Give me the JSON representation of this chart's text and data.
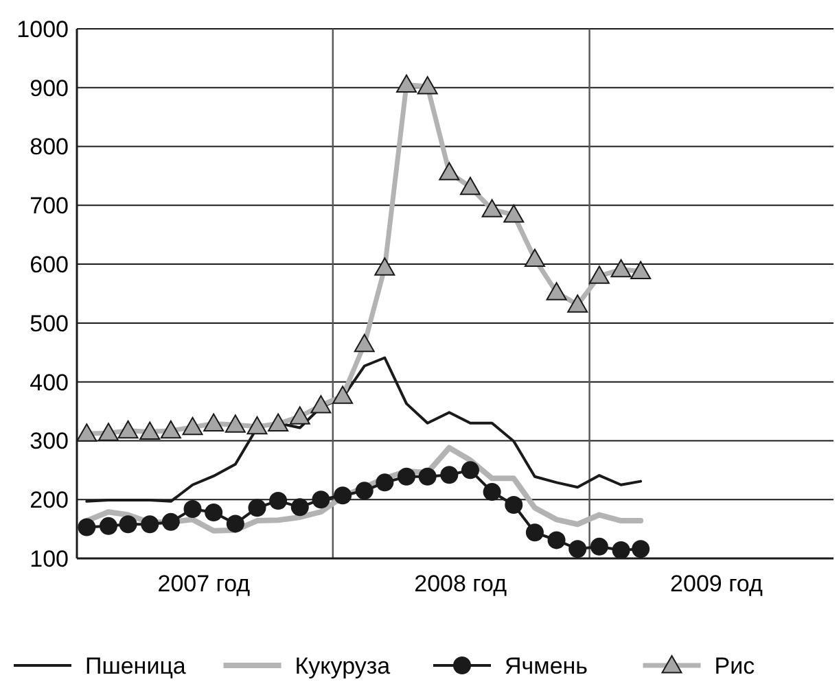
{
  "chart_data": {
    "type": "line",
    "x": [
      "2007-01-15",
      "2007-02-15",
      "2007-03-15",
      "2007-04-15",
      "2007-05-15",
      "2007-06-15",
      "2007-07-15",
      "2007-08-15",
      "2007-09-15",
      "2007-10-15",
      "2007-11-15",
      "2007-12-15",
      "2008-01-15",
      "2008-02-15",
      "2008-03-15",
      "2008-04-15",
      "2008-05-15",
      "2008-06-15",
      "2008-07-15",
      "2008-08-15",
      "2008-09-15",
      "2008-10-15",
      "2008-11-15",
      "2008-12-15",
      "2009-01-15",
      "2009-02-15",
      "2009-03-15"
    ],
    "xlim": [
      "2007-01-01",
      "2009-12-15"
    ],
    "xticks": [
      {
        "value": "2007-07-01",
        "label": "2007 год"
      },
      {
        "value": "2008-07-01",
        "label": "2008 год"
      },
      {
        "value": "2009-07-01",
        "label": "2009 год"
      }
    ],
    "ylim": [
      100,
      1000
    ],
    "yticks": [
      100,
      200,
      300,
      400,
      500,
      600,
      700,
      800,
      900,
      1000
    ],
    "grid": "y",
    "legend": "bottom",
    "ref_lines": [
      {
        "axis": "x",
        "value": "2008-01-01",
        "color": "#555555"
      },
      {
        "axis": "x",
        "value": "2009-01-01",
        "color": "#555555"
      }
    ],
    "series": [
      {
        "name": "Пшеница",
        "color": "#1a1a1a",
        "marker": "none",
        "values": [
          197,
          199,
          199,
          199,
          197,
          225,
          240,
          260,
          322,
          330,
          322,
          357,
          373,
          427,
          441,
          363,
          330,
          348,
          330,
          330,
          299,
          239,
          229,
          221,
          241,
          225,
          231
        ]
      },
      {
        "name": "Кукуруза",
        "color": "#b3b3b3",
        "marker": "none",
        "values": [
          164,
          179,
          174,
          161,
          162,
          166,
          147,
          148,
          164,
          165,
          170,
          179,
          205,
          221,
          236,
          248,
          246,
          288,
          267,
          236,
          236,
          186,
          166,
          158,
          174,
          164,
          164
        ]
      },
      {
        "name": "Ячмень",
        "color": "#1a1a1a",
        "marker": "circle",
        "values": [
          153,
          155,
          158,
          158,
          162,
          184,
          178,
          159,
          186,
          198,
          187,
          200,
          207,
          215,
          229,
          239,
          239,
          242,
          250,
          213,
          191,
          144,
          131,
          116,
          120,
          114,
          116
        ]
      },
      {
        "name": "Рис",
        "color": "#b3b3b3",
        "marker": "triangle",
        "values": [
          312,
          313,
          317,
          315,
          317,
          323,
          329,
          327,
          324,
          329,
          341,
          360,
          376,
          464,
          594,
          905,
          902,
          756,
          731,
          693,
          684,
          609,
          552,
          531,
          580,
          591,
          588
        ]
      }
    ]
  }
}
